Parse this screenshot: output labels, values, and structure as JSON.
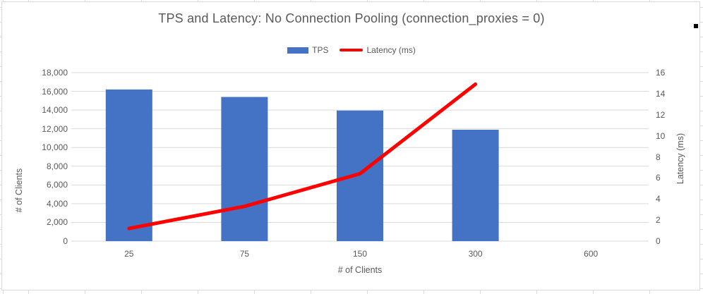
{
  "chart_data": {
    "type": "combo",
    "title": "TPS and Latency: No Connection Pooling (connection_proxies = 0)",
    "categories": [
      "25",
      "75",
      "150",
      "300",
      "600"
    ],
    "series": [
      {
        "name": "TPS",
        "type": "bar",
        "axis": "left",
        "color": "#4472C4",
        "values": [
          16200,
          15400,
          13950,
          11900,
          null
        ]
      },
      {
        "name": "Latency (ms)",
        "type": "line",
        "axis": "right",
        "color": "#FF0000",
        "values": [
          1.2,
          3.3,
          6.4,
          14.9,
          null
        ]
      }
    ],
    "xlabel": "# of Clients",
    "ylabel_left": "# of Clients",
    "ylabel_right": "Latency (ms)",
    "ylim_left": [
      0,
      18000
    ],
    "ylim_right": [
      0,
      16
    ],
    "yticks_left": [
      "0",
      "2,000",
      "4,000",
      "6,000",
      "8,000",
      "10,000",
      "12,000",
      "14,000",
      "16,000",
      "18,000"
    ],
    "yticks_right": [
      "0",
      "2",
      "4",
      "6",
      "8",
      "10",
      "12",
      "14",
      "16"
    ],
    "grid": true,
    "legend_position": "top"
  },
  "colors": {
    "bar": "#4472C4",
    "line": "#FF0000",
    "gridline": "#D9D9D9",
    "axis_text": "#595959",
    "panel_border": "#D9D9D9"
  }
}
